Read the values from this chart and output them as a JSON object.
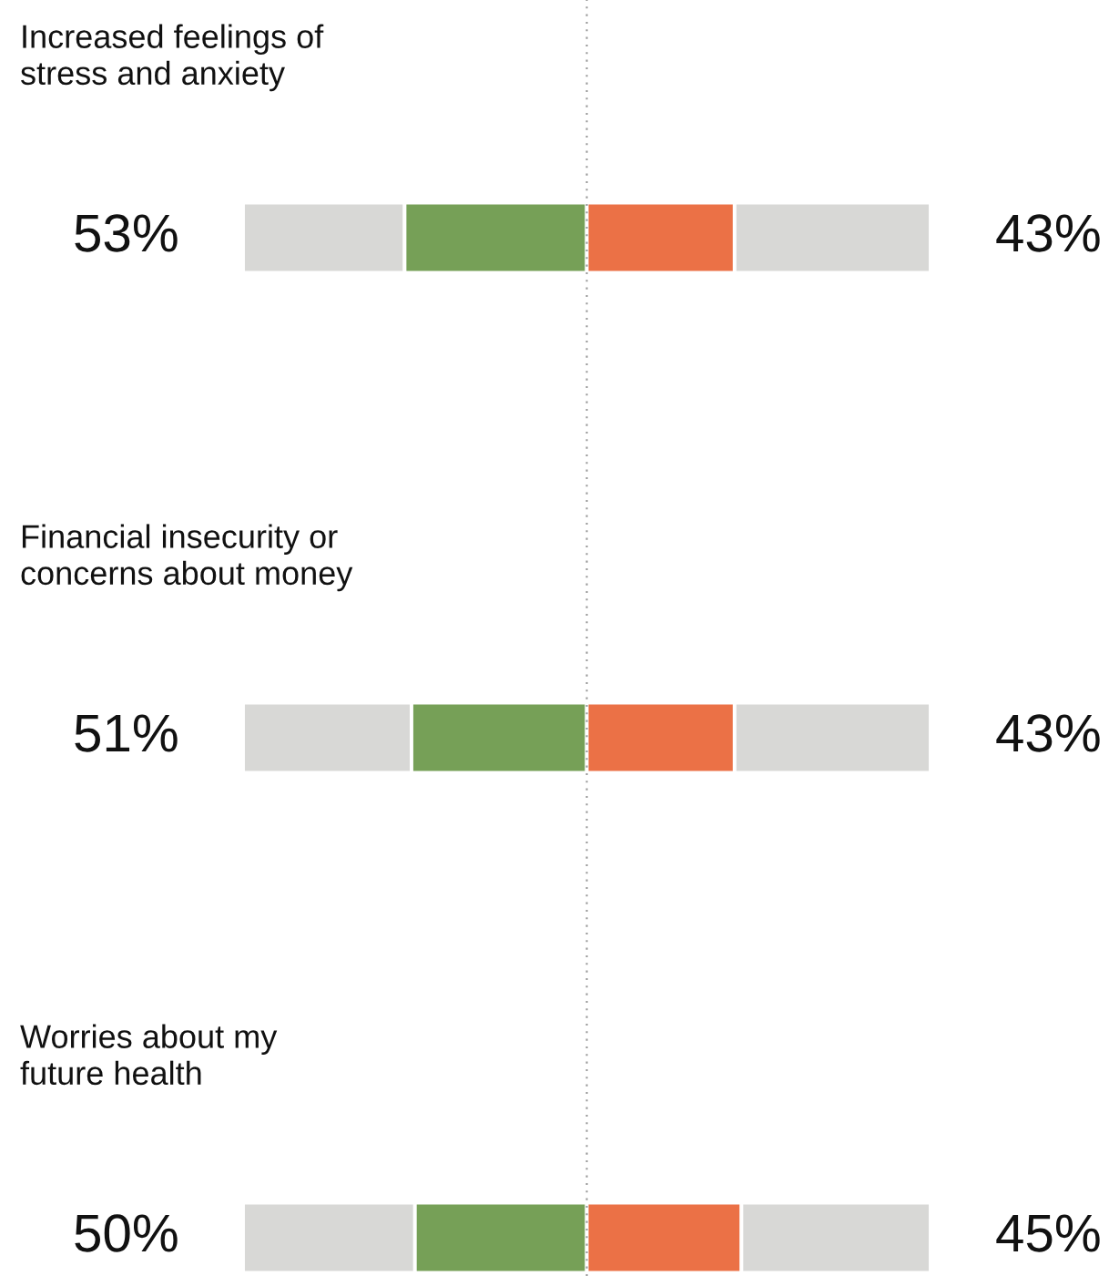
{
  "chart_data": {
    "type": "bar",
    "orientation": "horizontal",
    "stacked": true,
    "categories": [
      "Increased feelings of\nstress and anxiety",
      "Financial insecurity or\nconcerns about money",
      "Worries about my\nfuture health"
    ],
    "series": [
      {
        "color": "#d8d8d6",
        "values": [
          47,
          49,
          50
        ]
      },
      {
        "color": "#76a057",
        "values": [
          53,
          51,
          50
        ],
        "value_labels": [
          "53%",
          "51%",
          "50%"
        ]
      },
      {
        "color": "#eb7146",
        "values": [
          43,
          43,
          45
        ],
        "value_labels": [
          "43%",
          "43%",
          "45%"
        ]
      },
      {
        "color": "#d8d8d6",
        "values": [
          57,
          57,
          55
        ]
      }
    ],
    "xlim": [
      0,
      200
    ],
    "ref_lines": [
      {
        "axis": "x",
        "value": 100,
        "color": "#999999",
        "line_style": "dotted"
      }
    ]
  }
}
